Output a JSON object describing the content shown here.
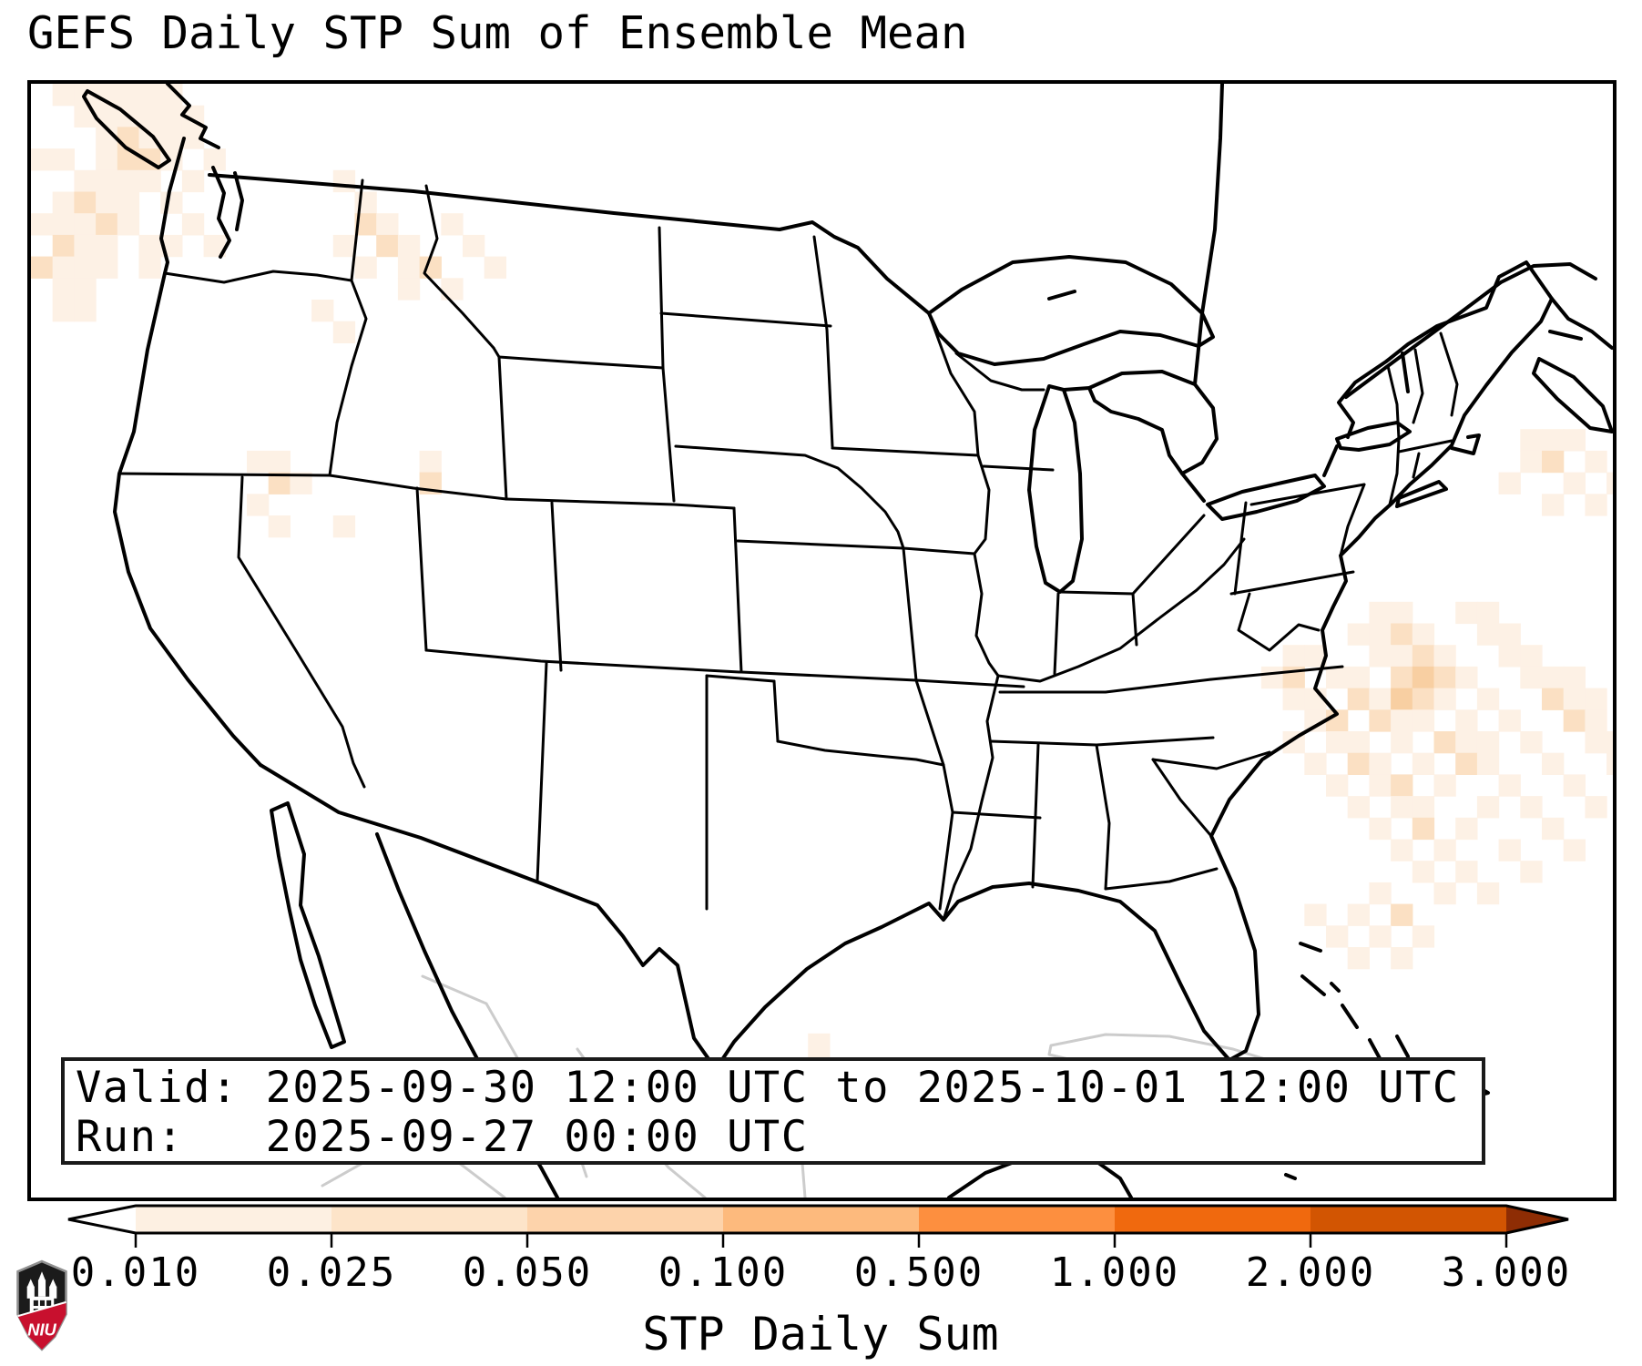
{
  "title": "GEFS Daily STP Sum of Ensemble Mean",
  "info_box": {
    "valid_line": "Valid: 2025-09-30 12:00 UTC to 2025-10-01 12:00 UTC",
    "run_line": "Run:   2025-09-27 00:00 UTC"
  },
  "colorbar": {
    "label": "STP Daily Sum",
    "ticks": [
      "0.010",
      "0.025",
      "0.050",
      "0.100",
      "0.500",
      "1.000",
      "2.000",
      "3.000"
    ],
    "thresholds": [
      0.01,
      0.025,
      0.05,
      0.1,
      0.5,
      1.0,
      2.0,
      3.0
    ],
    "segment_colors": [
      "#fdf0e2",
      "#fde4c9",
      "#fdd3ab",
      "#fdba7d",
      "#fd8f3f",
      "#f0690e",
      "#d25502"
    ],
    "under_color": "#ffffff",
    "over_color": "#8e2d04",
    "outline_color": "#000000"
  },
  "map": {
    "shading_levels": [
      "#fdf1e5",
      "#fbe0c3",
      "#f8cfa2"
    ],
    "cell_size": 23.7,
    "cells": [
      [
        1,
        0,
        1
      ],
      [
        2,
        0,
        1
      ],
      [
        3,
        0,
        1
      ],
      [
        4,
        0,
        1
      ],
      [
        5,
        0,
        1
      ],
      [
        6,
        0,
        1
      ],
      [
        2,
        1,
        1
      ],
      [
        3,
        1,
        1
      ],
      [
        4,
        1,
        1
      ],
      [
        5,
        1,
        1
      ],
      [
        6,
        1,
        1
      ],
      [
        7,
        1,
        1
      ],
      [
        3,
        2,
        1
      ],
      [
        4,
        2,
        2
      ],
      [
        5,
        2,
        1
      ],
      [
        6,
        2,
        1
      ],
      [
        7,
        2,
        1
      ],
      [
        0,
        3,
        1
      ],
      [
        1,
        3,
        1
      ],
      [
        3,
        3,
        1
      ],
      [
        4,
        3,
        2
      ],
      [
        5,
        3,
        2
      ],
      [
        6,
        3,
        1
      ],
      [
        8,
        3,
        1
      ],
      [
        2,
        4,
        1
      ],
      [
        3,
        4,
        1
      ],
      [
        4,
        4,
        1
      ],
      [
        5,
        4,
        1
      ],
      [
        7,
        4,
        1
      ],
      [
        1,
        5,
        1
      ],
      [
        2,
        5,
        2
      ],
      [
        3,
        5,
        1
      ],
      [
        4,
        5,
        1
      ],
      [
        6,
        5,
        1
      ],
      [
        0,
        6,
        1
      ],
      [
        1,
        6,
        1
      ],
      [
        2,
        6,
        1
      ],
      [
        3,
        6,
        2
      ],
      [
        4,
        6,
        1
      ],
      [
        7,
        6,
        1
      ],
      [
        1,
        7,
        2
      ],
      [
        2,
        7,
        1
      ],
      [
        3,
        7,
        1
      ],
      [
        5,
        7,
        1
      ],
      [
        6,
        7,
        1
      ],
      [
        8,
        7,
        1
      ],
      [
        0,
        8,
        2
      ],
      [
        1,
        8,
        1
      ],
      [
        2,
        8,
        1
      ],
      [
        3,
        8,
        1
      ],
      [
        5,
        8,
        1
      ],
      [
        1,
        9,
        1
      ],
      [
        2,
        9,
        1
      ],
      [
        1,
        10,
        1
      ],
      [
        2,
        10,
        1
      ],
      [
        14,
        4,
        1
      ],
      [
        15,
        5,
        1
      ],
      [
        15,
        6,
        2
      ],
      [
        16,
        6,
        1
      ],
      [
        19,
        6,
        1
      ],
      [
        14,
        7,
        1
      ],
      [
        16,
        7,
        2
      ],
      [
        17,
        7,
        1
      ],
      [
        20,
        7,
        1
      ],
      [
        15,
        8,
        1
      ],
      [
        17,
        8,
        1
      ],
      [
        18,
        8,
        2
      ],
      [
        21,
        8,
        1
      ],
      [
        17,
        9,
        1
      ],
      [
        19,
        9,
        1
      ],
      [
        13,
        10,
        1
      ],
      [
        14,
        11,
        1
      ],
      [
        10,
        17,
        1
      ],
      [
        11,
        17,
        1
      ],
      [
        11,
        18,
        2
      ],
      [
        12,
        18,
        1
      ],
      [
        10,
        19,
        1
      ],
      [
        11,
        20,
        1
      ],
      [
        14,
        20,
        1
      ],
      [
        18,
        17,
        1
      ],
      [
        18,
        18,
        2
      ],
      [
        36,
        44,
        1
      ],
      [
        36,
        45,
        1
      ],
      [
        69,
        16,
        1
      ],
      [
        70,
        16,
        1
      ],
      [
        71,
        16,
        1
      ],
      [
        69,
        17,
        1
      ],
      [
        70,
        17,
        2
      ],
      [
        72,
        17,
        1
      ],
      [
        68,
        18,
        1
      ],
      [
        71,
        18,
        1
      ],
      [
        73,
        18,
        1
      ],
      [
        70,
        19,
        1
      ],
      [
        72,
        19,
        1
      ],
      [
        62,
        24,
        1
      ],
      [
        63,
        24,
        1
      ],
      [
        66,
        24,
        1
      ],
      [
        67,
        24,
        1
      ],
      [
        61,
        25,
        1
      ],
      [
        62,
        25,
        1
      ],
      [
        63,
        25,
        2
      ],
      [
        64,
        25,
        1
      ],
      [
        67,
        25,
        1
      ],
      [
        68,
        25,
        1
      ],
      [
        58,
        26,
        1
      ],
      [
        59,
        26,
        1
      ],
      [
        62,
        26,
        1
      ],
      [
        63,
        26,
        1
      ],
      [
        64,
        26,
        2
      ],
      [
        65,
        26,
        1
      ],
      [
        68,
        26,
        1
      ],
      [
        69,
        26,
        1
      ],
      [
        57,
        27,
        1
      ],
      [
        58,
        27,
        2
      ],
      [
        60,
        27,
        1
      ],
      [
        61,
        27,
        1
      ],
      [
        63,
        27,
        2
      ],
      [
        64,
        27,
        3
      ],
      [
        65,
        27,
        2
      ],
      [
        66,
        27,
        1
      ],
      [
        69,
        27,
        1
      ],
      [
        70,
        27,
        1
      ],
      [
        71,
        27,
        1
      ],
      [
        58,
        28,
        1
      ],
      [
        59,
        28,
        1
      ],
      [
        61,
        28,
        2
      ],
      [
        62,
        28,
        1
      ],
      [
        63,
        28,
        3
      ],
      [
        64,
        28,
        2
      ],
      [
        65,
        28,
        1
      ],
      [
        67,
        28,
        1
      ],
      [
        70,
        28,
        2
      ],
      [
        71,
        28,
        1
      ],
      [
        72,
        28,
        1
      ],
      [
        59,
        29,
        1
      ],
      [
        60,
        29,
        2
      ],
      [
        62,
        29,
        2
      ],
      [
        63,
        29,
        1
      ],
      [
        64,
        29,
        1
      ],
      [
        66,
        29,
        1
      ],
      [
        68,
        29,
        1
      ],
      [
        71,
        29,
        2
      ],
      [
        72,
        29,
        1
      ],
      [
        58,
        30,
        1
      ],
      [
        60,
        30,
        1
      ],
      [
        61,
        30,
        1
      ],
      [
        63,
        30,
        1
      ],
      [
        65,
        30,
        2
      ],
      [
        66,
        30,
        1
      ],
      [
        67,
        30,
        1
      ],
      [
        69,
        30,
        1
      ],
      [
        72,
        30,
        1
      ],
      [
        73,
        30,
        1
      ],
      [
        59,
        31,
        1
      ],
      [
        61,
        31,
        2
      ],
      [
        62,
        31,
        1
      ],
      [
        64,
        31,
        1
      ],
      [
        66,
        31,
        2
      ],
      [
        67,
        31,
        1
      ],
      [
        70,
        31,
        1
      ],
      [
        73,
        31,
        1
      ],
      [
        60,
        32,
        1
      ],
      [
        62,
        32,
        1
      ],
      [
        63,
        32,
        2
      ],
      [
        65,
        32,
        1
      ],
      [
        68,
        32,
        1
      ],
      [
        71,
        32,
        1
      ],
      [
        61,
        33,
        1
      ],
      [
        63,
        33,
        1
      ],
      [
        64,
        33,
        1
      ],
      [
        67,
        33,
        1
      ],
      [
        69,
        33,
        1
      ],
      [
        72,
        33,
        1
      ],
      [
        62,
        34,
        1
      ],
      [
        64,
        34,
        2
      ],
      [
        66,
        34,
        1
      ],
      [
        70,
        34,
        1
      ],
      [
        63,
        35,
        1
      ],
      [
        65,
        35,
        1
      ],
      [
        68,
        35,
        1
      ],
      [
        71,
        35,
        1
      ],
      [
        64,
        36,
        1
      ],
      [
        66,
        36,
        1
      ],
      [
        69,
        36,
        1
      ],
      [
        62,
        37,
        1
      ],
      [
        65,
        37,
        1
      ],
      [
        67,
        37,
        1
      ],
      [
        59,
        38,
        1
      ],
      [
        61,
        38,
        1
      ],
      [
        63,
        38,
        2
      ],
      [
        60,
        39,
        1
      ],
      [
        62,
        39,
        1
      ],
      [
        64,
        39,
        1
      ],
      [
        61,
        40,
        1
      ],
      [
        63,
        40,
        1
      ]
    ]
  },
  "logo": {
    "text": "NIU",
    "shield_color": "#1b1b1b",
    "band_color": "#c8102e"
  }
}
